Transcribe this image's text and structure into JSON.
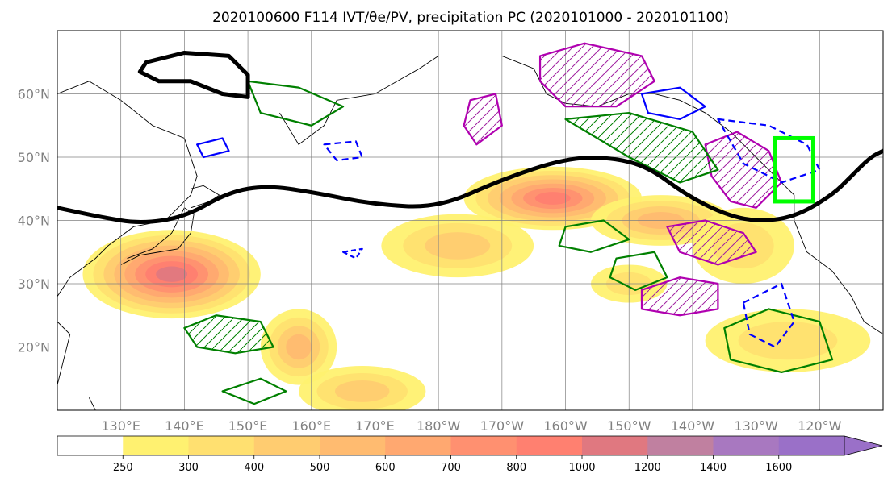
{
  "chart_data": {
    "type": "map",
    "title": "2020100600 F114 IVT/θe/PV, precipitation PC (2020101000 - 2020101100)",
    "map": {
      "lon_range": [
        120,
        250
      ],
      "lat_range": [
        10,
        70
      ],
      "xticks": [
        {
          "lon": 130,
          "label": "130°E"
        },
        {
          "lon": 140,
          "label": "140°E"
        },
        {
          "lon": 150,
          "label": "150°E"
        },
        {
          "lon": 160,
          "label": "160°E"
        },
        {
          "lon": 170,
          "label": "170°E"
        },
        {
          "lon": 180,
          "label": "180°W"
        },
        {
          "lon": 190,
          "label": "170°W"
        },
        {
          "lon": 200,
          "label": "160°W"
        },
        {
          "lon": 210,
          "label": "150°W"
        },
        {
          "lon": 220,
          "label": "140°W"
        },
        {
          "lon": 230,
          "label": "130°W"
        },
        {
          "lon": 240,
          "label": "120°W"
        }
      ],
      "yticks": [
        {
          "lat": 20,
          "label": "20°N"
        },
        {
          "lat": 30,
          "label": "30°N"
        },
        {
          "lat": 40,
          "label": "40°N"
        },
        {
          "lat": 50,
          "label": "50°N"
        },
        {
          "lat": 60,
          "label": "60°N"
        }
      ],
      "grid": true
    },
    "colorbar": {
      "levels": [
        250,
        300,
        400,
        500,
        600,
        700,
        800,
        1000,
        1200,
        1400,
        1600
      ],
      "labels": [
        "250",
        "300",
        "400",
        "500",
        "600",
        "700",
        "800",
        "1000",
        "1200",
        "1400",
        "1600"
      ],
      "colors": [
        "#ffffff",
        "#fff170",
        "#ffe070",
        "#ffcc70",
        "#ffbb70",
        "#ffa870",
        "#ff9070",
        "#ff8070",
        "#e07880",
        "#c080a0",
        "#a878c0",
        "#9a70c8"
      ],
      "extend": "max"
    },
    "ivt_blobs": [
      {
        "lon": 138,
        "lat": 31.5,
        "rx": 14,
        "ry": 7,
        "value": 1000
      },
      {
        "lon": 158,
        "lat": 20,
        "rx": 6,
        "ry": 6,
        "value": 500
      },
      {
        "lon": 168,
        "lat": 13,
        "rx": 10,
        "ry": 4,
        "value": 400
      },
      {
        "lon": 198,
        "lat": 43.5,
        "rx": 14,
        "ry": 5,
        "value": 800
      },
      {
        "lon": 183,
        "lat": 36,
        "rx": 12,
        "ry": 5,
        "value": 400
      },
      {
        "lon": 215,
        "lat": 40,
        "rx": 11,
        "ry": 4,
        "value": 500
      },
      {
        "lon": 228,
        "lat": 36,
        "rx": 8,
        "ry": 6,
        "value": 300
      },
      {
        "lon": 235,
        "lat": 21,
        "rx": 13,
        "ry": 5,
        "value": 300
      },
      {
        "lon": 210,
        "lat": 30,
        "rx": 6,
        "ry": 3,
        "value": 300
      }
    ],
    "theta_e_contour": [
      [
        120,
        42
      ],
      [
        127,
        40.5
      ],
      [
        133,
        39.5
      ],
      [
        140,
        40.5
      ],
      [
        147,
        44.5
      ],
      [
        153,
        45.5
      ],
      [
        160,
        44.5
      ],
      [
        170,
        42.5
      ],
      [
        180,
        42
      ],
      [
        190,
        46.5
      ],
      [
        200,
        49.8
      ],
      [
        207,
        50
      ],
      [
        213,
        48.5
      ],
      [
        219,
        44
      ],
      [
        225,
        41
      ],
      [
        230,
        39.8
      ],
      [
        236,
        40.5
      ],
      [
        242,
        44
      ],
      [
        245,
        47
      ],
      [
        248,
        50
      ],
      [
        250,
        51
      ]
    ],
    "pv_features": [
      {
        "lon": 152,
        "lat": 60,
        "color": "#008000"
      },
      {
        "lon": 196,
        "lat": 62,
        "color": "#b000b0"
      },
      {
        "lon": 232,
        "lat": 52,
        "color": "#0000ff"
      }
    ],
    "box": {
      "lon_min": 233,
      "lon_max": 239,
      "lat_min": 43,
      "lat_max": 53,
      "color": "#00ff00"
    }
  }
}
